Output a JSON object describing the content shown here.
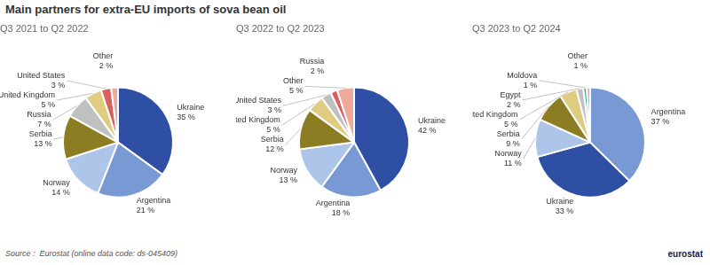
{
  "title": "Main partners for extra-EU imports of sova bean oil",
  "annotations": [
    "Source :  Eurostat (online data code: ds-045409)",
    "eurostat"
  ],
  "chart_data": [
    {
      "type": "pie",
      "subtitle": "Q3 2021 to Q2 2022",
      "categories": [
        "Ukraine",
        "Argentina",
        "Norway",
        "Serbia",
        "Russia",
        "United Kingdom",
        "United States",
        "Other"
      ],
      "values": [
        35,
        21,
        14,
        13,
        7,
        5,
        3,
        2
      ],
      "value_labels": [
        "35 %",
        "21 %",
        "14 %",
        "13 %",
        "7 %",
        "5 %",
        "3 %",
        "2 %"
      ],
      "colors": [
        "#2e4fa3",
        "#7899d4",
        "#adc5e8",
        "#8c7d22",
        "#c0c0c0",
        "#e0cc80",
        "#d96060",
        "#f0a898"
      ],
      "data_labels": true
    },
    {
      "type": "pie",
      "subtitle": "Q3 2022 to Q2 2023",
      "categories": [
        "Ukraine",
        "Argentina",
        "Norway",
        "Serbia",
        "United Kingdom",
        "United States",
        "Russia",
        "Other"
      ],
      "values": [
        42,
        18,
        13,
        12,
        5,
        3,
        2,
        5
      ],
      "value_labels": [
        "42 %",
        "18 %",
        "13 %",
        "12 %",
        "5 %",
        "3 %",
        "2 %",
        "5 %"
      ],
      "colors": [
        "#2e4fa3",
        "#7899d4",
        "#adc5e8",
        "#8c7d22",
        "#e0cc80",
        "#c0c0c0",
        "#d96060",
        "#f0a898"
      ],
      "data_labels": true
    },
    {
      "type": "pie",
      "subtitle": "Q3 2023 to Q2 2024",
      "categories": [
        "Argentina",
        "Ukraine",
        "Norway",
        "Serbia",
        "United Kingdom",
        "Egypt",
        "Moldova",
        "Other"
      ],
      "values": [
        37,
        33,
        11,
        9,
        5,
        2,
        1,
        1
      ],
      "value_labels": [
        "37 %",
        "33 %",
        "11 %",
        "9 %",
        "5 %",
        "2 %",
        "1 %",
        "1 %"
      ],
      "colors": [
        "#7899d4",
        "#2e4fa3",
        "#adc5e8",
        "#8c7d22",
        "#e0cc80",
        "#c0c0c0",
        "#2ab89a",
        "#f0a898"
      ],
      "data_labels": true
    }
  ]
}
